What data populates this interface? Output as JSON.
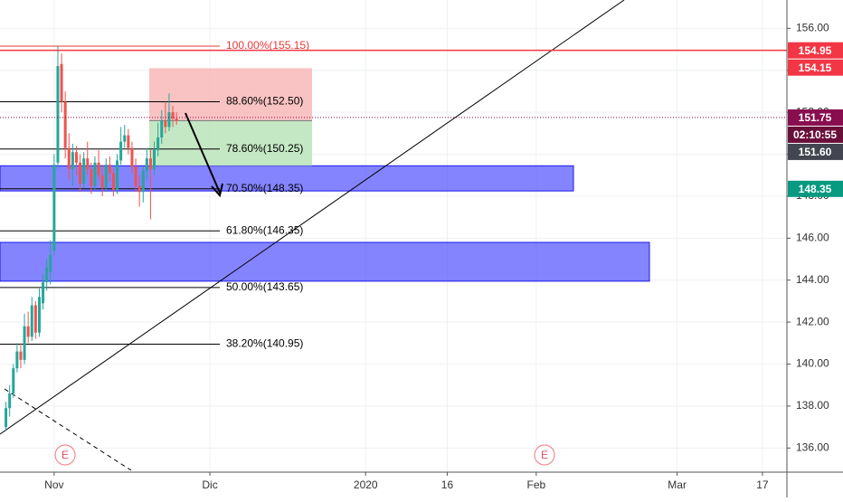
{
  "chart_data": {
    "type": "candlestick",
    "candles": {
      "x": [
        -6.5,
        -6,
        -5.5,
        -5,
        -4.5,
        -4,
        -3.5,
        -3,
        -2.5,
        -2,
        -1.5,
        -1,
        -0.5,
        0,
        0.5,
        1,
        1.5,
        2,
        2.5,
        3,
        3.5,
        4,
        4.5,
        5,
        5.5,
        6,
        6.5,
        7,
        7.5,
        8,
        8.5,
        9,
        9.5,
        10,
        10.5,
        11,
        11.5,
        12,
        12.5,
        13,
        13.5,
        14,
        14.5,
        15,
        15.5,
        16,
        16.5
      ],
      "open": [
        137.0,
        137.9,
        138.6,
        139.8,
        140.6,
        140.2,
        141.8,
        141.3,
        142.8,
        141.5,
        142.9,
        143.9,
        144.4,
        145.4,
        149.6,
        154.3,
        152.5,
        150.3,
        149.3,
        150.1,
        149.6,
        148.6,
        149.8,
        149.3,
        148.5,
        149.6,
        149.0,
        148.4,
        149.5,
        149.1,
        148.3,
        149.7,
        150.6,
        150.9,
        150.3,
        149.4,
        148.5,
        148.2,
        149.2,
        149.8,
        149.3,
        150.2,
        150.8,
        151.6,
        151.3,
        152.0,
        151.7
      ],
      "close": [
        137.9,
        138.6,
        139.8,
        140.6,
        140.2,
        141.8,
        141.3,
        142.8,
        141.5,
        143.2,
        143.9,
        144.6,
        145.2,
        149.5,
        154.2,
        152.5,
        150.3,
        149.3,
        150.1,
        149.6,
        148.6,
        149.8,
        149.3,
        148.5,
        149.6,
        149.0,
        148.4,
        149.5,
        149.1,
        148.3,
        149.7,
        150.6,
        150.9,
        150.3,
        149.4,
        148.5,
        148.2,
        149.2,
        149.8,
        149.3,
        150.2,
        150.8,
        151.6,
        151.3,
        152.0,
        151.7,
        151.6
      ],
      "high": [
        138.2,
        139.0,
        140.0,
        141.0,
        141.0,
        142.4,
        142.5,
        143.2,
        143.0,
        143.6,
        144.3,
        145.0,
        145.9,
        150.0,
        155.15,
        154.8,
        153.0,
        151.0,
        150.5,
        150.4,
        150.0,
        150.1,
        150.6,
        149.6,
        149.9,
        150.2,
        149.5,
        149.8,
        149.9,
        149.3,
        150.0,
        151.3,
        151.4,
        151.2,
        150.6,
        149.8,
        149.0,
        149.4,
        150.3,
        150.2,
        150.6,
        151.5,
        152.1,
        152.5,
        152.9,
        152.3,
        152.0
      ],
      "low": [
        136.8,
        137.5,
        138.4,
        139.6,
        139.8,
        140.0,
        141.0,
        141.1,
        141.2,
        141.3,
        142.6,
        143.5,
        143.8,
        145.2,
        149.3,
        152.0,
        149.8,
        148.8,
        148.5,
        149.0,
        148.2,
        148.4,
        149.0,
        148.1,
        148.3,
        148.8,
        148.0,
        148.2,
        148.7,
        148.0,
        148.1,
        149.5,
        150.3,
        150.0,
        149.1,
        148.2,
        147.5,
        147.7,
        148.8,
        146.9,
        149.0,
        149.9,
        150.5,
        151.0,
        151.1,
        151.3,
        151.4
      ],
      "up_color": "#26a69a",
      "down_color": "#ef5350"
    },
    "xlim": [
      -7.3,
      98.8
    ],
    "ylim": [
      134.85,
      157.35
    ],
    "xticks": [
      {
        "value": 0,
        "label": "Nov"
      },
      {
        "value": 21,
        "label": "Dic"
      },
      {
        "value": 42,
        "label": "2020"
      },
      {
        "value": 53,
        "label": "16"
      },
      {
        "value": 65,
        "label": "Feb"
      },
      {
        "value": 84,
        "label": "Mar"
      },
      {
        "value": 95.5,
        "label": "17"
      }
    ],
    "yticks": [
      {
        "value": 136,
        "label": "136.00"
      },
      {
        "value": 138,
        "label": "138.00"
      },
      {
        "value": 140,
        "label": "140.00"
      },
      {
        "value": 142,
        "label": "142.00"
      },
      {
        "value": 144,
        "label": "144.00"
      },
      {
        "value": 146,
        "label": "146.00"
      },
      {
        "value": 148,
        "label": "148.00"
      },
      {
        "value": 150,
        "label": "150.00"
      },
      {
        "value": 152,
        "label": "152.00"
      },
      {
        "value": 154,
        "label": "154.00"
      },
      {
        "value": 156,
        "label": "156.00"
      }
    ],
    "grid": true,
    "fib_levels": [
      {
        "value": 155.15,
        "label": "100.00%(155.15)",
        "color": "#e53935"
      },
      {
        "value": 152.5,
        "label": "88.60%(152.50)",
        "color": "#000000"
      },
      {
        "value": 150.25,
        "label": "78.60%(150.25)",
        "color": "#000000"
      },
      {
        "value": 148.35,
        "label": "70.50%(148.35)",
        "color": "#000000"
      },
      {
        "value": 146.35,
        "label": "61.80%(146.35)",
        "color": "#000000"
      },
      {
        "value": 143.65,
        "label": "50.00%(143.65)",
        "color": "#000000"
      },
      {
        "value": 140.95,
        "label": "38.20%(140.95)",
        "color": "#000000"
      }
    ],
    "zones": [
      {
        "low": 148.25,
        "high": 149.45,
        "color": "#5050ff"
      },
      {
        "low": 143.95,
        "high": 145.8,
        "color": "#5050ff"
      }
    ],
    "position": {
      "stop": 154.1,
      "entry": 151.6,
      "target": 149.45
    },
    "price_tags": [
      {
        "value": 154.95,
        "label": "154.95",
        "color": "#f23645"
      },
      {
        "value": 154.15,
        "label": "154.15",
        "color": "#f23645"
      },
      {
        "value": 151.75,
        "label": "151.75",
        "color": "#880e4f"
      },
      {
        "label": "02:10:55",
        "color": "#6a0f3a"
      },
      {
        "value": 151.6,
        "label": "151.60",
        "color": "#434651"
      },
      {
        "value": 148.35,
        "label": "148.35",
        "color": "#089981"
      }
    ],
    "events": [
      "E",
      "E"
    ]
  }
}
